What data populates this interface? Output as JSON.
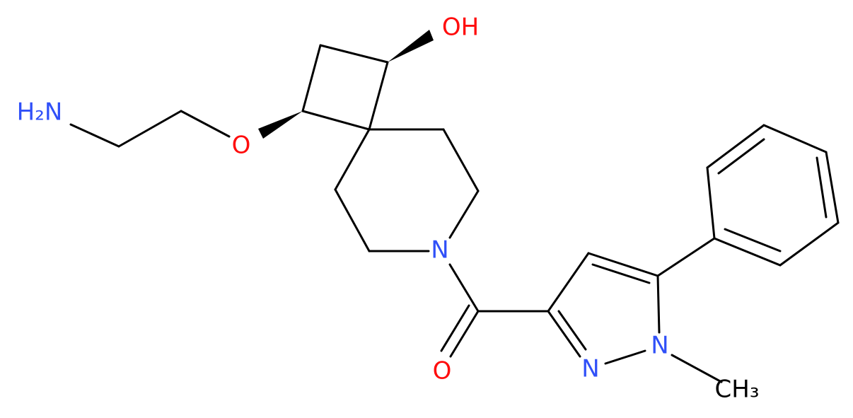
{
  "atoms": [
    {
      "label": "H₂N"
    },
    {
      "label": "O"
    },
    {
      "label": "OH"
    },
    {
      "label": "N"
    },
    {
      "label": "O"
    },
    {
      "label": "N"
    },
    {
      "label": "N"
    },
    {
      "label": "CH₃"
    }
  ]
}
